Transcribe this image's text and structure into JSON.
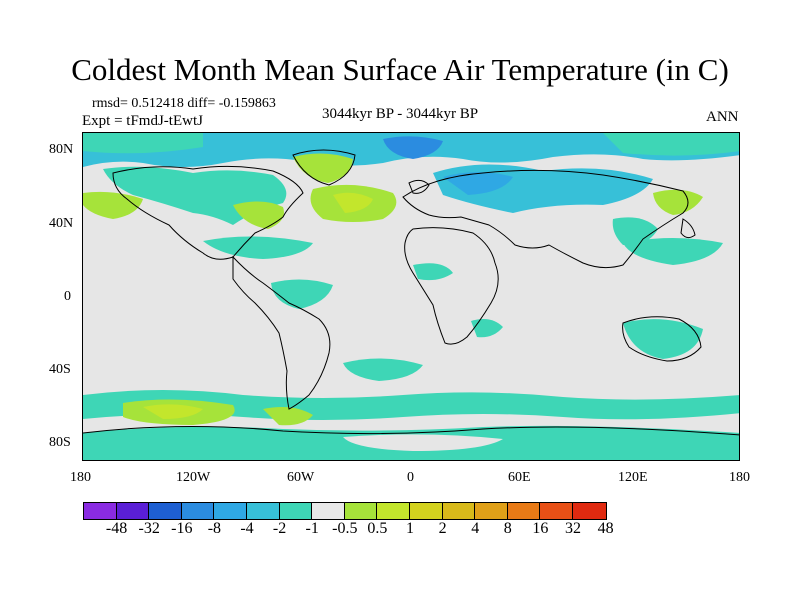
{
  "title": "Coldest Month Mean Surface Air Temperature (in C)",
  "stats": {
    "rmsd_diff": "rmsd= 0.512418 diff= -0.159863",
    "experiment": "Expt = tFmdJ-tEwtJ",
    "period": "3044kyr BP - 3044kyr BP",
    "season": "ANN"
  },
  "map": {
    "projection": "cylindrical equidistant",
    "lon_range": [
      -180,
      180
    ],
    "lat_range": [
      -90,
      90
    ],
    "background_color": "#e6e6e6",
    "lat_ticks": [
      "80N",
      "40N",
      "0",
      "40S",
      "80S"
    ],
    "lon_ticks": [
      "180",
      "120W",
      "60W",
      "0",
      "60E",
      "120E",
      "180"
    ]
  },
  "colorbar": {
    "colors": [
      "#8a2be2",
      "#5a1fd6",
      "#1e5fd2",
      "#2b8ce0",
      "#2fa8e4",
      "#37c0d8",
      "#3ed6b6",
      "#e8e8e8",
      "#a6e33a",
      "#c3e62c",
      "#d3d21e",
      "#d8ba1a",
      "#e0a018",
      "#e87a16",
      "#e85016",
      "#e02a10"
    ],
    "labels": [
      "-48",
      "-32",
      "-16",
      "-8",
      "-4",
      "-2",
      "-1",
      "-0.5",
      "0.5",
      "1",
      "2",
      "4",
      "8",
      "16",
      "32",
      "48"
    ]
  }
}
